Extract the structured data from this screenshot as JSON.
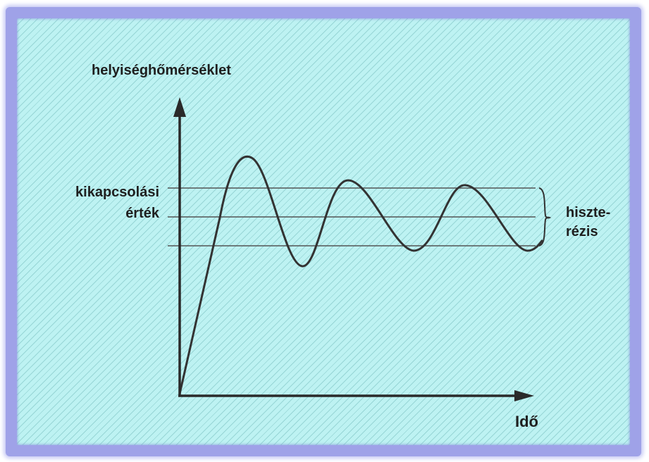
{
  "diagram": {
    "y_axis_label": "helyiséghőmérséklet",
    "x_axis_label": "Idő",
    "setpoint_label_line1": "kikapcsolási",
    "setpoint_label_line2": "érték",
    "hysteresis_label_line1": "hiszte-",
    "hysteresis_label_line2": "rézis"
  },
  "colors": {
    "border": "#9fa2e8",
    "background": "#bdf2f2",
    "curve": "#333333",
    "reference_lines": "#555555"
  }
}
